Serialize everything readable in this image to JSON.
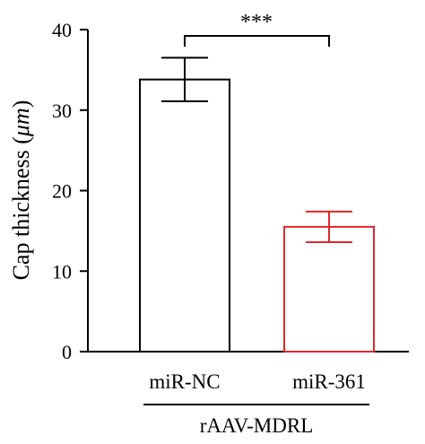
{
  "chart_data": {
    "type": "bar",
    "categories": [
      "miR-NC",
      "miR-361"
    ],
    "values": [
      33.8,
      15.5
    ],
    "errors": [
      2.7,
      1.9
    ],
    "colors": [
      "#000000",
      "#e0262b"
    ],
    "ylabel_prefix": "Cap thickness (",
    "ylabel_unit": "μm",
    "ylabel_suffix": ")",
    "ylim": [
      0,
      40
    ],
    "yticks": [
      "0",
      "10",
      "20",
      "30",
      "40"
    ],
    "group_label": "rAAV-MDRL",
    "significance": "***"
  }
}
